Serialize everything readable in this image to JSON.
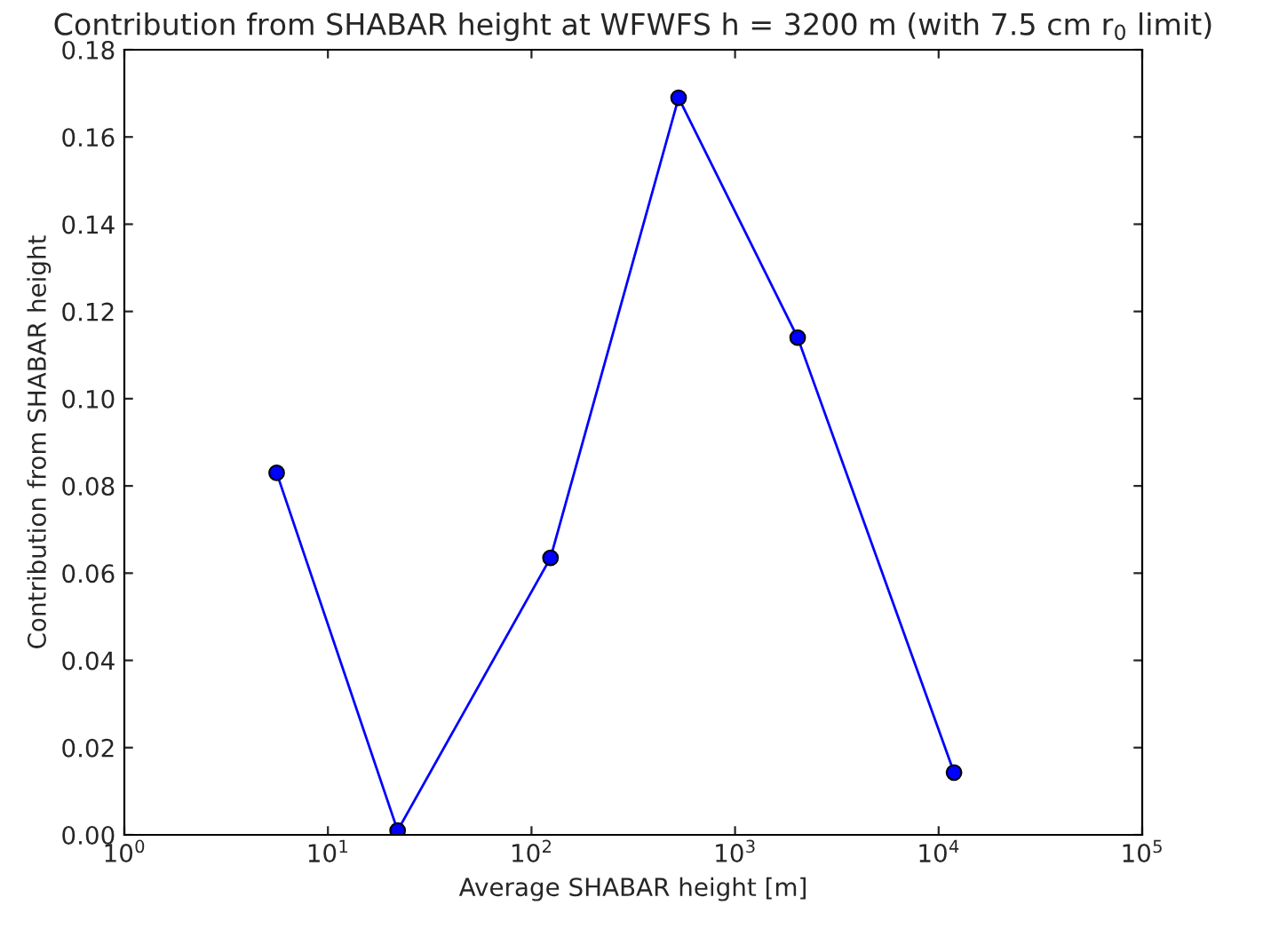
{
  "chart_data": {
    "type": "line",
    "title": "Contribution from SHABAR height at WFWFS h = 3200 m (with 7.5 cm r$_{0}$ limit)",
    "xlabel": "Average SHABAR height [m]",
    "ylabel": "Contribution from SHABAR height",
    "log": "x",
    "marker": "circle",
    "line_style": "solid",
    "grid": false,
    "x": [
      5.6,
      22,
      124,
      528,
      2030,
      11900
    ],
    "series": [
      {
        "color": "#0000ff",
        "values": [
          0.083,
          0.001,
          0.0635,
          0.169,
          0.114,
          0.0143
        ]
      }
    ],
    "xlim": [
      1,
      100000
    ],
    "xticks": [
      {
        "value": 1,
        "label": "10$^{0}$"
      },
      {
        "value": 10,
        "label": "10$^{1}$"
      },
      {
        "value": 100,
        "label": "10$^{2}$"
      },
      {
        "value": 1000,
        "label": "10$^{3}$"
      },
      {
        "value": 10000,
        "label": "10$^{4}$"
      },
      {
        "value": 100000,
        "label": "10$^{5}$"
      }
    ],
    "ylim": [
      0,
      0.18
    ],
    "yticks": [
      {
        "value": 0,
        "label": "0.00"
      },
      {
        "value": 0.02,
        "label": "0.02"
      },
      {
        "value": 0.04,
        "label": "0.04"
      },
      {
        "value": 0.06,
        "label": "0.06"
      },
      {
        "value": 0.08,
        "label": "0.08"
      },
      {
        "value": 0.1,
        "label": "0.10"
      },
      {
        "value": 0.12,
        "label": "0.12"
      },
      {
        "value": 0.14,
        "label": "0.14"
      },
      {
        "value": 0.16,
        "label": "0.16"
      },
      {
        "value": 0.18,
        "label": "0.18"
      }
    ]
  }
}
